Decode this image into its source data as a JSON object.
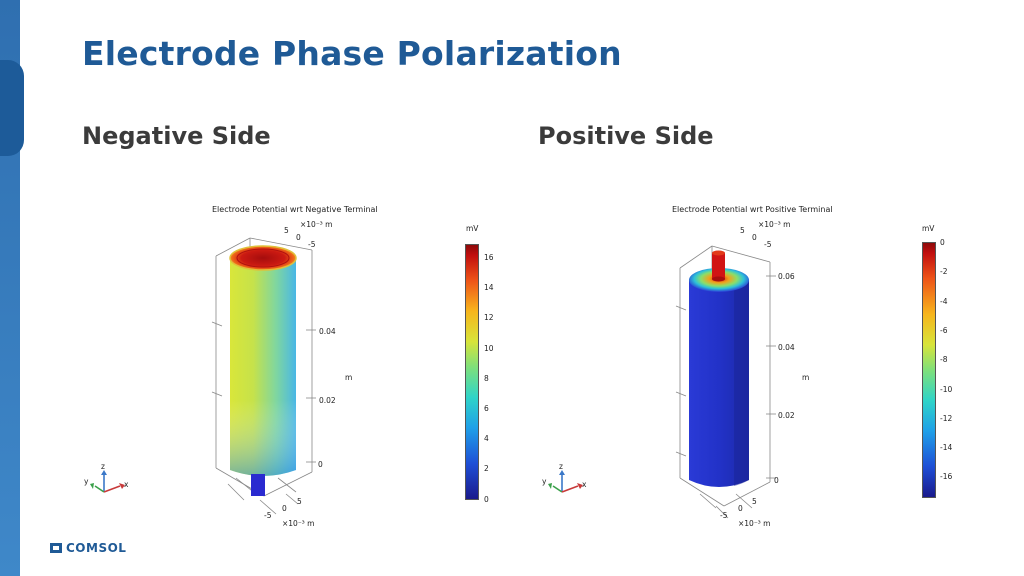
{
  "slide": {
    "title": "Electrode Phase Polarization",
    "left_heading": "Negative Side",
    "right_heading": "Positive Side",
    "logo_text": "COMSOL"
  },
  "negative_plot": {
    "title": "Electrode Potential wrt Negative Terminal",
    "colorbar_unit": "mV",
    "colorbar_ticks": [
      "16",
      "14",
      "12",
      "10",
      "8",
      "6",
      "4",
      "2",
      "0"
    ],
    "z_ticks": [
      "0.04",
      "0.02",
      "0"
    ],
    "z_unit": "m",
    "top_axis": {
      "exp": "×10⁻³ m",
      "ticks": [
        "5",
        "0",
        "-5"
      ]
    },
    "bottom_axis": {
      "exp": "×10⁻³ m",
      "ticks": [
        "5",
        "0",
        "-5"
      ]
    },
    "triad": {
      "z": "z",
      "y": "y",
      "x": "x"
    }
  },
  "positive_plot": {
    "title": "Electrode Potential wrt Positive Terminal",
    "colorbar_unit": "mV",
    "colorbar_ticks": [
      "0",
      "-2",
      "-4",
      "-6",
      "-8",
      "-10",
      "-12",
      "-14",
      "-16"
    ],
    "z_ticks": [
      "0.06",
      "0.04",
      "0.02",
      "0"
    ],
    "z_unit": "m",
    "top_axis": {
      "exp": "×10⁻³ m",
      "ticks": [
        "5",
        "0",
        "-5"
      ]
    },
    "bottom_axis": {
      "exp": "×10⁻³ m",
      "ticks": [
        "5",
        "0",
        "-5"
      ]
    },
    "triad": {
      "z": "z",
      "y": "y",
      "x": "x"
    }
  }
}
